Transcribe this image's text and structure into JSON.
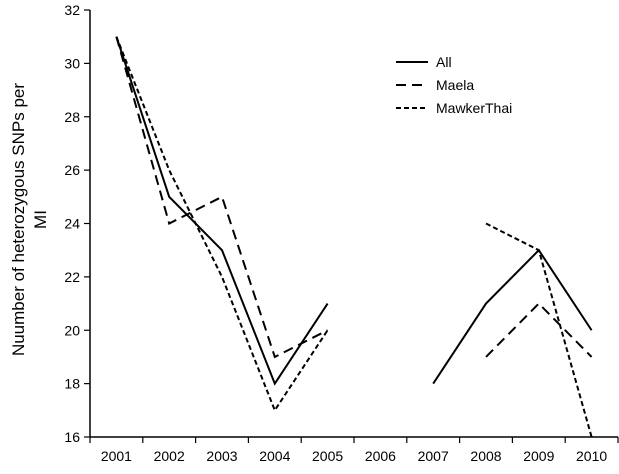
{
  "chart_data": {
    "type": "line",
    "title": "",
    "xlabel": "",
    "ylabel": "Nuumber of heterozygous SNPs per MI",
    "ylabel_lines": [
      "Nuumber of heterozygous SNPs per",
      "MI"
    ],
    "categories": [
      "2001",
      "2002",
      "2003",
      "2004",
      "2005",
      "2006",
      "2007",
      "2008",
      "2009",
      "2010"
    ],
    "ylim": [
      16,
      32
    ],
    "yticks": [
      16,
      18,
      20,
      22,
      24,
      26,
      28,
      30,
      32
    ],
    "grid": false,
    "legend_position": "top-right",
    "series": [
      {
        "name": "All",
        "style": "solid",
        "color": "#000000",
        "values": [
          31,
          25,
          23,
          18,
          21,
          null,
          18,
          21,
          23,
          20
        ]
      },
      {
        "name": "Maela",
        "style": "dashed",
        "color": "#000000",
        "values": [
          31,
          24,
          25,
          19,
          20,
          null,
          null,
          19,
          21,
          19
        ]
      },
      {
        "name": "MawkerThai",
        "style": "dotted",
        "color": "#000000",
        "values": [
          31,
          26,
          22,
          17,
          20,
          null,
          null,
          24,
          23,
          16
        ]
      }
    ]
  }
}
